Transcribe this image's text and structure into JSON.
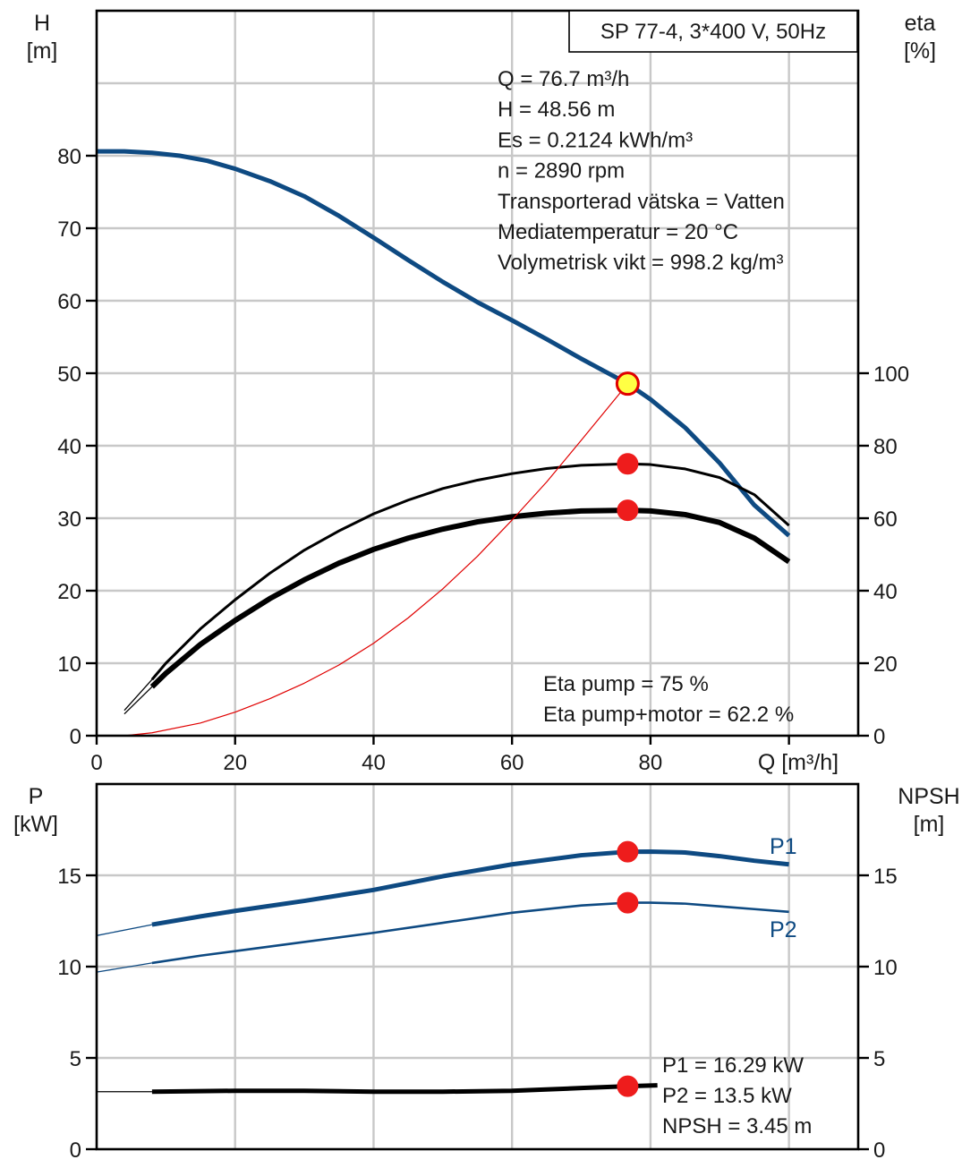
{
  "chart_data": [
    {
      "type": "line",
      "title": "SP 77-4, 3*400 V, 50Hz",
      "xlabel": "Q [m³/h]",
      "ylabel_left": [
        "H",
        "[m]"
      ],
      "ylabel_right": [
        "eta",
        "[%]"
      ],
      "xlim": [
        0,
        110
      ],
      "ylim_left": [
        0,
        80
      ],
      "ylim_right": [
        0,
        100
      ],
      "x_ticks": [
        "0",
        "20",
        "40",
        "60",
        "80"
      ],
      "y_ticks_left": [
        "0",
        "10",
        "20",
        "30",
        "40",
        "50",
        "60",
        "70",
        "80"
      ],
      "y_ticks_right": [
        "0",
        "20",
        "40",
        "60",
        "80",
        "100"
      ],
      "grid": true,
      "info_text": [
        "Q = 76.7 m³/h",
        "H = 48.56 m",
        "Es = 0.2124 kWh/m³",
        "n = 2890 rpm",
        "Transporterad vätska = Vatten",
        "Mediatemperatur = 20 °C",
        "Volymetrisk vikt = 998.2 kg/m³"
      ],
      "efficiency_text": [
        "Eta pump = 75 %",
        "Eta pump+motor = 62.2 %"
      ],
      "series": [
        {
          "axis": "left",
          "color": "#0e4a82",
          "width": 5,
          "x": [
            0,
            4,
            8,
            12,
            16,
            20,
            25,
            30,
            35,
            40,
            45,
            50,
            55,
            60,
            65,
            70,
            76.7,
            80,
            85,
            90,
            95,
            100
          ],
          "y": [
            80.6,
            80.6,
            80.4,
            80,
            79.3,
            78.2,
            76.5,
            74.4,
            71.7,
            68.7,
            65.6,
            62.6,
            59.8,
            57.3,
            54.7,
            52,
            48.56,
            46.4,
            42.5,
            37.6,
            31.8,
            27.6
          ]
        },
        {
          "axis": "right",
          "color": "#000000",
          "width": 3,
          "x": [
            8,
            10,
            15,
            20,
            25,
            30,
            35,
            40,
            45,
            50,
            55,
            60,
            65,
            70,
            76.7,
            80,
            85,
            90,
            95,
            100
          ],
          "y": [
            15.5,
            20,
            29.5,
            37.5,
            44.8,
            51.2,
            56.5,
            61.2,
            65,
            68.2,
            70.5,
            72.3,
            73.7,
            74.6,
            75,
            74.8,
            73.6,
            71.2,
            66.5,
            58
          ]
        },
        {
          "axis": "right",
          "color": "#000000",
          "width": 6,
          "x": [
            8,
            10,
            15,
            20,
            25,
            30,
            35,
            40,
            45,
            50,
            55,
            60,
            65,
            70,
            76.7,
            80,
            85,
            90,
            95,
            100
          ],
          "y": [
            13.5,
            17.2,
            25.2,
            31.8,
            37.8,
            43,
            47.6,
            51.4,
            54.5,
            57,
            59,
            60.4,
            61.4,
            62,
            62.2,
            62,
            61,
            58.8,
            54.5,
            48
          ]
        },
        {
          "axis": "right",
          "color": "#e00000",
          "width": 1.2,
          "x": [
            4,
            8,
            15,
            20,
            25,
            30,
            35,
            40,
            45,
            50,
            55,
            60,
            65,
            70,
            76.7
          ],
          "y": [
            0,
            0.8,
            3.5,
            6.5,
            10.2,
            14.5,
            19.5,
            25.5,
            32.5,
            40.5,
            49.5,
            59.5,
            70,
            81.5,
            97.1
          ]
        }
      ],
      "tail_left": [
        {
          "axis": "right",
          "color": "#000000",
          "x": [
            4,
            8
          ],
          "y": [
            7,
            15.5
          ]
        },
        {
          "axis": "right",
          "color": "#000000",
          "x": [
            4,
            8
          ],
          "y": [
            6,
            13.5
          ]
        }
      ],
      "markers": [
        {
          "axis": "left",
          "x": 76.7,
          "y": 48.56,
          "fill": "#ffff44",
          "stroke": "#e00000"
        },
        {
          "axis": "right",
          "x": 76.7,
          "y": 75,
          "fill": "#ee1c1c",
          "stroke": "#ee1c1c"
        },
        {
          "axis": "right",
          "x": 76.7,
          "y": 62.2,
          "fill": "#ee1c1c",
          "stroke": "#ee1c1c"
        }
      ]
    },
    {
      "type": "line",
      "ylabel_left": [
        "P",
        "[kW]"
      ],
      "ylabel_right": [
        "NPSH",
        "[m]"
      ],
      "xlim": [
        0,
        110
      ],
      "ylim": [
        0,
        20
      ],
      "y_ticks_left": [
        "0",
        "5",
        "10",
        "15"
      ],
      "y_ticks_right": [
        "0",
        "5",
        "10",
        "15"
      ],
      "grid": true,
      "info_text": [
        "P1 = 16.29 kW",
        "P2 = 13.5 kW",
        "NPSH = 3.45 m"
      ],
      "series": [
        {
          "name": "P1",
          "color": "#0e4a82",
          "width": 5,
          "x": [
            8,
            15,
            20,
            30,
            40,
            50,
            60,
            70,
            76.7,
            80,
            85,
            90,
            95,
            100
          ],
          "y": [
            12.3,
            12.75,
            13.05,
            13.6,
            14.2,
            14.95,
            15.6,
            16.1,
            16.29,
            16.3,
            16.25,
            16.05,
            15.8,
            15.6
          ]
        },
        {
          "name": "P2",
          "color": "#0e4a82",
          "width": 2.6,
          "x": [
            8,
            15,
            20,
            30,
            40,
            50,
            60,
            70,
            76.7,
            80,
            85,
            90,
            95,
            100
          ],
          "y": [
            10.2,
            10.6,
            10.85,
            11.35,
            11.85,
            12.4,
            12.95,
            13.35,
            13.5,
            13.5,
            13.45,
            13.3,
            13.15,
            13
          ]
        },
        {
          "name": "NPSH",
          "color": "#000000",
          "width": 5,
          "x": [
            8,
            20,
            30,
            40,
            50,
            60,
            70,
            76.7,
            81
          ],
          "y": [
            3.15,
            3.2,
            3.2,
            3.15,
            3.15,
            3.2,
            3.35,
            3.45,
            3.5
          ]
        }
      ],
      "tail_left": [
        {
          "color": "#0e4a82",
          "x": [
            0,
            8
          ],
          "y": [
            11.7,
            12.3
          ]
        },
        {
          "color": "#0e4a82",
          "x": [
            0,
            8
          ],
          "y": [
            9.7,
            10.2
          ]
        },
        {
          "color": "#000000",
          "x": [
            0,
            8
          ],
          "y": [
            3.15,
            3.15
          ]
        }
      ],
      "markers": [
        {
          "x": 76.7,
          "y": 16.29,
          "fill": "#ee1c1c",
          "stroke": "#ee1c1c"
        },
        {
          "x": 76.7,
          "y": 13.5,
          "fill": "#ee1c1c",
          "stroke": "#ee1c1c"
        },
        {
          "x": 76.7,
          "y": 3.45,
          "fill": "#ee1c1c",
          "stroke": "#ee1c1c"
        }
      ]
    }
  ]
}
